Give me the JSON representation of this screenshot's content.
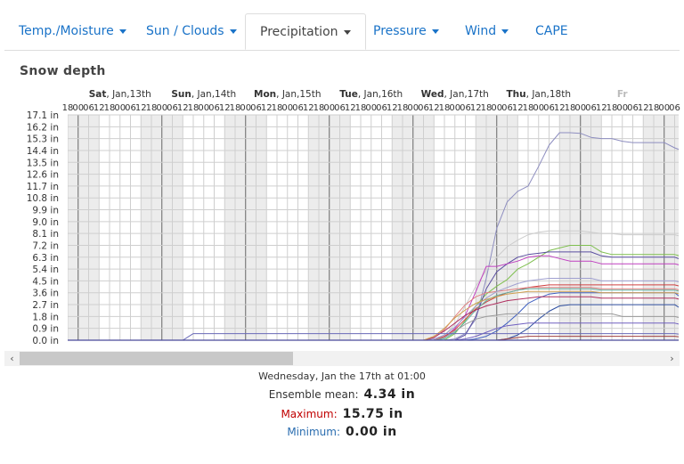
{
  "tabs": [
    {
      "label": "Temp./Moisture",
      "dropdown": true
    },
    {
      "label": "Sun / Clouds",
      "dropdown": true
    },
    {
      "label": "Precipitation",
      "dropdown": true,
      "active": true
    },
    {
      "label": "Pressure",
      "dropdown": true
    },
    {
      "label": "Wind",
      "dropdown": true
    },
    {
      "label": "CAPE",
      "dropdown": false
    }
  ],
  "section_title": "Snow depth",
  "chart_data": {
    "type": "line",
    "title": "Snow depth",
    "y_unit": "in",
    "ylim": [
      0,
      17.1
    ],
    "y_ticks": [
      "0.0 in",
      "0.9 in",
      "1.8 in",
      "2.7 in",
      "3.6 in",
      "4.5 in",
      "5.4 in",
      "6.3 in",
      "7.2 in",
      "8.1 in",
      "9.0 in",
      "9.9 in",
      "10.8 in",
      "11.7 in",
      "12.6 in",
      "13.5 in",
      "14.4 in",
      "15.3 in",
      "16.2 in",
      "17.1 in"
    ],
    "day_labels": [
      {
        "bold": "Sat",
        "rest": ", Jan,13th"
      },
      {
        "bold": "Sun",
        "rest": ", Jan,14th"
      },
      {
        "bold": "Mon",
        "rest": ", Jan,15th"
      },
      {
        "bold": "Tue",
        "rest": ", Jan,16th"
      },
      {
        "bold": "Wed",
        "rest": ", Jan,17th"
      },
      {
        "bold": "Thu",
        "rest": ", Jan,18th"
      },
      {
        "bold": "Fr",
        "rest": ""
      }
    ],
    "hour_labels": [
      "00",
      "06",
      "12",
      "18"
    ],
    "grid": true,
    "legend": "none",
    "series": [
      {
        "color": "#8e8ec0",
        "values": [
          0,
          0,
          0,
          0,
          0,
          0,
          0,
          0,
          0,
          0,
          0,
          0,
          0,
          0,
          0,
          0,
          0,
          0,
          0,
          0,
          0,
          0,
          0,
          0,
          0,
          0,
          0,
          0,
          0,
          0,
          0,
          0,
          0,
          0,
          0,
          0,
          0,
          0.1,
          0.5,
          1.6,
          4.7,
          8.5,
          10.5,
          11.3,
          11.7,
          13.2,
          14.8,
          15.75,
          15.75,
          15.7,
          15.4,
          15.3,
          15.3,
          15.1,
          15.0,
          15.0,
          15.0,
          15.0,
          14.6,
          14.3,
          14.0,
          13.7,
          14.0,
          13.7,
          13.7,
          13.7
        ]
      },
      {
        "color": "#cccccc",
        "values": [
          0,
          0,
          0,
          0,
          0,
          0,
          0,
          0,
          0,
          0,
          0,
          0,
          0,
          0,
          0,
          0,
          0,
          0,
          0,
          0,
          0,
          0,
          0,
          0,
          0,
          0,
          0,
          0,
          0,
          0,
          0,
          0,
          0,
          0,
          0,
          0,
          0.4,
          1.2,
          2.6,
          4.1,
          5.3,
          6.3,
          7.1,
          7.6,
          8.0,
          8.2,
          8.3,
          8.3,
          8.3,
          8.3,
          8.2,
          8.1,
          8.1,
          8.0,
          8.0,
          8.0,
          8.0,
          8.0,
          8.0,
          7.8,
          6.5,
          6.3,
          6.3,
          6.3,
          6.3,
          6.3
        ]
      },
      {
        "color": "#7fbf4f",
        "values": [
          0,
          0,
          0,
          0,
          0,
          0,
          0,
          0,
          0,
          0,
          0,
          0,
          0,
          0,
          0,
          0,
          0,
          0,
          0,
          0,
          0,
          0,
          0,
          0,
          0,
          0,
          0,
          0,
          0,
          0,
          0,
          0,
          0,
          0,
          0,
          0,
          0,
          0.5,
          1.5,
          2.6,
          3.5,
          4.1,
          4.6,
          5.4,
          5.8,
          6.3,
          6.8,
          7.0,
          7.2,
          7.2,
          7.2,
          6.7,
          6.5,
          6.5,
          6.5,
          6.5,
          6.5,
          6.5,
          6.5,
          6.3,
          5.3,
          4.5,
          4.5,
          4.5,
          4.5,
          4.5
        ]
      },
      {
        "color": "#5a4ea0",
        "values": [
          0,
          0,
          0,
          0,
          0,
          0,
          0,
          0,
          0,
          0,
          0,
          0,
          0,
          0,
          0,
          0,
          0,
          0,
          0,
          0,
          0,
          0,
          0,
          0,
          0,
          0,
          0,
          0,
          0,
          0,
          0,
          0,
          0,
          0,
          0,
          0,
          0,
          0,
          0.4,
          1.8,
          3.9,
          5.2,
          5.8,
          6.3,
          6.5,
          6.6,
          6.7,
          6.7,
          6.7,
          6.7,
          6.7,
          6.4,
          6.3,
          6.3,
          6.3,
          6.3,
          6.3,
          6.3,
          6.3,
          6.0,
          5.4,
          5.1,
          5.1,
          5.1,
          5.1,
          5.1
        ]
      },
      {
        "color": "#c040c0",
        "values": [
          0,
          0,
          0,
          0,
          0,
          0,
          0,
          0,
          0,
          0,
          0,
          0,
          0,
          0,
          0,
          0,
          0,
          0,
          0,
          0,
          0,
          0,
          0,
          0,
          0,
          0,
          0,
          0,
          0,
          0,
          0,
          0,
          0,
          0,
          0,
          0,
          0.2,
          0.9,
          1.9,
          3.7,
          5.6,
          5.6,
          5.8,
          6.0,
          6.3,
          6.4,
          6.4,
          6.2,
          6.0,
          6.0,
          6.0,
          5.8,
          5.8,
          5.8,
          5.8,
          5.8,
          5.8,
          5.8,
          5.8,
          5.6,
          4.9,
          4.8,
          4.8,
          4.8,
          4.8,
          4.8
        ]
      },
      {
        "color": "#d04040",
        "values": [
          0,
          0,
          0,
          0,
          0,
          0,
          0,
          0,
          0,
          0,
          0,
          0,
          0,
          0,
          0,
          0,
          0,
          0,
          0,
          0,
          0,
          0,
          0,
          0,
          0,
          0,
          0,
          0,
          0,
          0,
          0,
          0,
          0,
          0,
          0,
          0,
          0.3,
          0.8,
          1.6,
          2.4,
          2.9,
          3.3,
          3.6,
          3.8,
          4.0,
          4.1,
          4.2,
          4.2,
          4.2,
          4.2,
          4.2,
          4.2,
          4.2,
          4.2,
          4.2,
          4.2,
          4.2,
          4.2,
          4.2,
          4.0,
          3.5,
          3.3,
          3.3,
          3.3,
          3.3,
          3.3
        ]
      },
      {
        "color": "#4060c0",
        "values": [
          0,
          0,
          0,
          0,
          0,
          0,
          0,
          0,
          0,
          0,
          0,
          0,
          0,
          0,
          0,
          0,
          0,
          0,
          0,
          0,
          0,
          0,
          0,
          0,
          0,
          0,
          0,
          0,
          0,
          0,
          0,
          0,
          0,
          0,
          0,
          0,
          0,
          0,
          0,
          0.1,
          0.3,
          0.7,
          1.3,
          2.0,
          2.8,
          3.2,
          3.5,
          3.6,
          3.6,
          3.6,
          3.6,
          3.6,
          3.6,
          3.6,
          3.6,
          3.6,
          3.6,
          3.6,
          3.6,
          3.0,
          2.2,
          1.9,
          1.9,
          2.0,
          2.0,
          2.0
        ]
      },
      {
        "color": "#e08080",
        "values": [
          0,
          0,
          0,
          0,
          0,
          0,
          0,
          0,
          0,
          0,
          0,
          0,
          0,
          0,
          0,
          0,
          0,
          0,
          0,
          0,
          0,
          0,
          0,
          0,
          0,
          0,
          0,
          0,
          0,
          0,
          0,
          0,
          0,
          0,
          0,
          0.2,
          0.8,
          1.8,
          2.7,
          3.3,
          3.6,
          3.7,
          3.8,
          3.9,
          4.0,
          4.0,
          4.0,
          4.0,
          4.0,
          4.0,
          4.0,
          3.9,
          3.9,
          3.9,
          3.9,
          3.9,
          3.9,
          3.9,
          3.9,
          3.7,
          3.1,
          2.8,
          2.8,
          2.8,
          2.8,
          2.8
        ]
      },
      {
        "color": "#3050a0",
        "values": [
          0,
          0,
          0,
          0,
          0,
          0,
          0,
          0,
          0,
          0,
          0,
          0,
          0,
          0,
          0,
          0,
          0,
          0,
          0,
          0,
          0,
          0,
          0,
          0,
          0,
          0,
          0,
          0,
          0,
          0,
          0,
          0,
          0,
          0,
          0,
          0,
          0,
          0,
          0,
          0,
          0,
          0,
          0.1,
          0.4,
          0.9,
          1.6,
          2.2,
          2.6,
          2.7,
          2.7,
          2.7,
          2.7,
          2.7,
          2.7,
          2.7,
          2.7,
          2.7,
          2.7,
          2.7,
          2.2,
          1.5,
          1.2,
          1.2,
          1.5,
          1.5,
          1.5
        ]
      },
      {
        "color": "#a0a0d0",
        "values": [
          0,
          0,
          0,
          0,
          0,
          0,
          0,
          0,
          0,
          0,
          0,
          0,
          0,
          0,
          0,
          0,
          0,
          0,
          0,
          0,
          0,
          0,
          0,
          0,
          0,
          0,
          0,
          0,
          0,
          0,
          0,
          0,
          0,
          0,
          0,
          0.1,
          0.4,
          1.0,
          1.8,
          2.6,
          3.2,
          3.7,
          4.0,
          4.3,
          4.5,
          4.6,
          4.7,
          4.7,
          4.7,
          4.7,
          4.7,
          4.5,
          4.5,
          4.5,
          4.5,
          4.5,
          4.5,
          4.5,
          4.5,
          4.3,
          3.8,
          3.6,
          3.6,
          3.6,
          3.6,
          3.6
        ]
      },
      {
        "color": "#60b0a0",
        "values": [
          0,
          0,
          0,
          0,
          0,
          0,
          0,
          0,
          0,
          0,
          0,
          0,
          0,
          0,
          0,
          0,
          0,
          0,
          0,
          0,
          0,
          0,
          0,
          0,
          0,
          0,
          0,
          0,
          0,
          0,
          0,
          0,
          0,
          0,
          0,
          0,
          0.1,
          0.6,
          1.4,
          2.3,
          3.0,
          3.4,
          3.6,
          3.8,
          3.9,
          3.9,
          3.9,
          3.9,
          3.9,
          3.9,
          3.9,
          3.8,
          3.8,
          3.8,
          3.8,
          3.8,
          3.8,
          3.8,
          3.8,
          3.6,
          3.0,
          2.7,
          2.7,
          2.7,
          2.7,
          2.7
        ]
      },
      {
        "color": "#9a9a9a",
        "values": [
          0,
          0,
          0,
          0,
          0,
          0,
          0,
          0,
          0,
          0,
          0,
          0,
          0,
          0,
          0,
          0,
          0,
          0,
          0,
          0,
          0,
          0,
          0,
          0,
          0,
          0,
          0,
          0,
          0,
          0,
          0,
          0,
          0,
          0,
          0,
          0,
          0.2,
          0.7,
          1.2,
          1.6,
          1.8,
          1.9,
          2.0,
          2.0,
          2.0,
          2.0,
          2.0,
          2.0,
          2.0,
          2.0,
          2.0,
          2.0,
          2.0,
          1.8,
          1.8,
          1.8,
          1.8,
          1.8,
          1.8,
          1.6,
          1.2,
          1.0,
          1.0,
          1.0,
          1.0,
          1.0
        ]
      },
      {
        "color": "#b03060",
        "values": [
          0,
          0,
          0,
          0,
          0,
          0,
          0,
          0,
          0,
          0,
          0,
          0,
          0,
          0,
          0,
          0,
          0,
          0,
          0,
          0,
          0,
          0,
          0,
          0,
          0,
          0,
          0,
          0,
          0,
          0,
          0,
          0,
          0,
          0,
          0,
          0.2,
          0.7,
          1.3,
          1.9,
          2.3,
          2.6,
          2.8,
          3.0,
          3.1,
          3.2,
          3.3,
          3.3,
          3.3,
          3.3,
          3.3,
          3.3,
          3.2,
          3.2,
          3.2,
          3.2,
          3.2,
          3.2,
          3.2,
          3.2,
          3.0,
          2.4,
          2.2,
          2.2,
          2.2,
          2.2,
          2.2
        ]
      },
      {
        "color": "#d0a050",
        "values": [
          0,
          0,
          0,
          0,
          0,
          0,
          0,
          0,
          0,
          0,
          0,
          0,
          0,
          0,
          0,
          0,
          0,
          0,
          0,
          0,
          0,
          0,
          0,
          0,
          0,
          0,
          0,
          0,
          0,
          0,
          0,
          0,
          0,
          0,
          0,
          0.3,
          0.9,
          1.7,
          2.3,
          2.8,
          3.1,
          3.3,
          3.5,
          3.6,
          3.7,
          3.7,
          3.7,
          3.7,
          3.7,
          3.7,
          3.7,
          3.6,
          3.6,
          3.6,
          3.6,
          3.6,
          3.6,
          3.6,
          3.6,
          3.4,
          2.9,
          2.7,
          2.7,
          2.7,
          2.7,
          2.7
        ]
      },
      {
        "color": "#7060c0",
        "values": [
          0,
          0,
          0,
          0,
          0,
          0,
          0,
          0,
          0,
          0,
          0,
          0,
          0,
          0,
          0,
          0,
          0,
          0,
          0,
          0,
          0,
          0,
          0,
          0,
          0,
          0,
          0,
          0,
          0,
          0,
          0,
          0,
          0,
          0,
          0,
          0,
          0,
          0,
          0.1,
          0.3,
          0.6,
          0.9,
          1.1,
          1.2,
          1.3,
          1.3,
          1.3,
          1.3,
          1.3,
          1.3,
          1.3,
          1.3,
          1.3,
          1.3,
          1.3,
          1.3,
          1.3,
          1.3,
          1.3,
          1.1,
          0.8,
          0.7,
          0.7,
          0.7,
          0.7,
          0.7
        ]
      },
      {
        "color": "#6a6ab8",
        "values": [
          0,
          0,
          0,
          0,
          0,
          0,
          0,
          0,
          0,
          0,
          0,
          0,
          0.5,
          0.5,
          0.5,
          0.5,
          0.5,
          0.5,
          0.5,
          0.5,
          0.5,
          0.5,
          0.5,
          0.5,
          0.5,
          0.5,
          0.5,
          0.5,
          0.5,
          0.5,
          0.5,
          0.5,
          0.5,
          0.5,
          0.5,
          0.5,
          0.5,
          0.5,
          0.5,
          0.5,
          0.5,
          0.5,
          0.5,
          0.5,
          0.5,
          0.5,
          0.5,
          0.5,
          0.5,
          0.5,
          0.5,
          0.5,
          0.5,
          0.5,
          0.5,
          0.5,
          0.5,
          0.5,
          0.5,
          0.4,
          0.2,
          0.1,
          0.1,
          0.1,
          0.1,
          0.1
        ]
      },
      {
        "color": "#a04040",
        "values": [
          0,
          0,
          0,
          0,
          0,
          0,
          0,
          0,
          0,
          0,
          0,
          0,
          0,
          0,
          0,
          0,
          0,
          0,
          0,
          0,
          0,
          0,
          0,
          0,
          0,
          0,
          0,
          0,
          0,
          0,
          0,
          0,
          0,
          0,
          0,
          0,
          0,
          0,
          0,
          0,
          0,
          0,
          0.1,
          0.2,
          0.3,
          0.3,
          0.3,
          0.3,
          0.3,
          0.3,
          0.3,
          0.3,
          0.3,
          0.3,
          0.3,
          0.3,
          0.3,
          0.3,
          0.3,
          0.2,
          0.1,
          0.1,
          0.1,
          0.1,
          0.1,
          0.1
        ]
      }
    ]
  },
  "readout": {
    "datetime": "Wednesday, Jan the 17th at 01:00",
    "mean_label": "Ensemble mean:",
    "mean_value": "4.34 in",
    "max_label": "Maximum:",
    "max_value": "15.75 in",
    "min_label": "Minimum:",
    "min_value": "0.00 in",
    "max_color": "#c00000",
    "min_color": "#2a6db0"
  },
  "scrollbar": {
    "left_arrow": "‹",
    "right_arrow": "›"
  }
}
